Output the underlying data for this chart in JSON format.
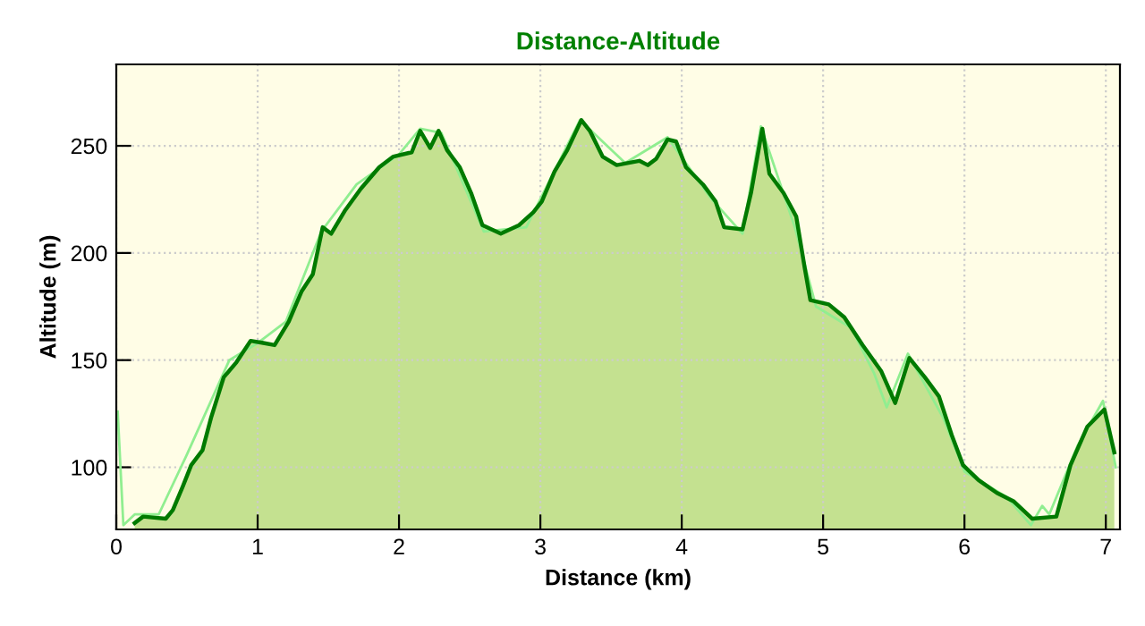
{
  "chart_data": {
    "type": "area",
    "title": "Distance-Altitude",
    "xlabel": "Distance (km)",
    "ylabel": "Altitude (m)",
    "xlim": [
      0,
      7.1
    ],
    "ylim": [
      71,
      288
    ],
    "xticks": [
      0,
      1,
      2,
      3,
      4,
      5,
      6,
      7
    ],
    "yticks": [
      100,
      150,
      200,
      250
    ],
    "grid": true,
    "legend": false,
    "series": [
      {
        "type": "line",
        "color": "#90ee90",
        "x": [
          0.01,
          0.05,
          0.13,
          0.3,
          0.5,
          0.65,
          0.8,
          1.0,
          1.2,
          1.45,
          1.7,
          2.0,
          2.15,
          2.3,
          2.6,
          2.9,
          3.28,
          3.6,
          3.9,
          4.2,
          4.43,
          4.56,
          4.8,
          4.95,
          5.2,
          5.36,
          5.45,
          5.6,
          5.85,
          6.0,
          6.3,
          6.47,
          6.55,
          6.6,
          6.8,
          6.98,
          7.07
        ],
        "values": [
          126,
          73,
          78,
          78,
          106,
          128,
          150,
          158,
          168,
          210,
          232,
          246,
          258,
          256,
          210,
          212,
          262,
          242,
          254,
          226,
          209,
          259,
          212,
          175,
          165,
          144,
          128,
          153,
          123,
          98,
          86,
          73,
          82,
          78,
          110,
          131,
          100
        ]
      },
      {
        "color": "#007a00",
        "x": [
          0.13,
          0.19,
          0.35,
          0.4,
          0.47,
          0.53,
          0.61,
          0.67,
          0.76,
          0.85,
          0.95,
          1.04,
          1.12,
          1.22,
          1.31,
          1.39,
          1.46,
          1.52,
          1.62,
          1.73,
          1.86,
          1.96,
          2.09,
          2.15,
          2.22,
          2.28,
          2.34,
          2.43,
          2.51,
          2.59,
          2.72,
          2.85,
          2.95,
          3.01,
          3.1,
          3.19,
          3.29,
          3.35,
          3.44,
          3.54,
          3.7,
          3.76,
          3.82,
          3.9,
          3.96,
          4.03,
          4.15,
          4.24,
          4.3,
          4.43,
          4.49,
          4.57,
          4.62,
          4.72,
          4.81,
          4.87,
          4.91,
          5.04,
          5.15,
          5.28,
          5.41,
          5.51,
          5.61,
          5.72,
          5.82,
          5.91,
          5.99,
          6.1,
          6.23,
          6.35,
          6.48,
          6.65,
          6.75,
          6.87,
          6.99,
          7.06
        ],
        "values": [
          74,
          77,
          76,
          80,
          91,
          101,
          108,
          123,
          142,
          149,
          159,
          158,
          157,
          168,
          182,
          190,
          212,
          209,
          220,
          230,
          240,
          245,
          247,
          257,
          249,
          257,
          248,
          240,
          228,
          213,
          209,
          213,
          219,
          224,
          238,
          248,
          262,
          257,
          245,
          241,
          243,
          241,
          244,
          253,
          252,
          240,
          232,
          224,
          212,
          211,
          228,
          258,
          237,
          228,
          217,
          193,
          178,
          176,
          170,
          157,
          145,
          130,
          151,
          142,
          133,
          115,
          101,
          94,
          88,
          84,
          76,
          77,
          101,
          119,
          127,
          107
        ]
      }
    ]
  }
}
